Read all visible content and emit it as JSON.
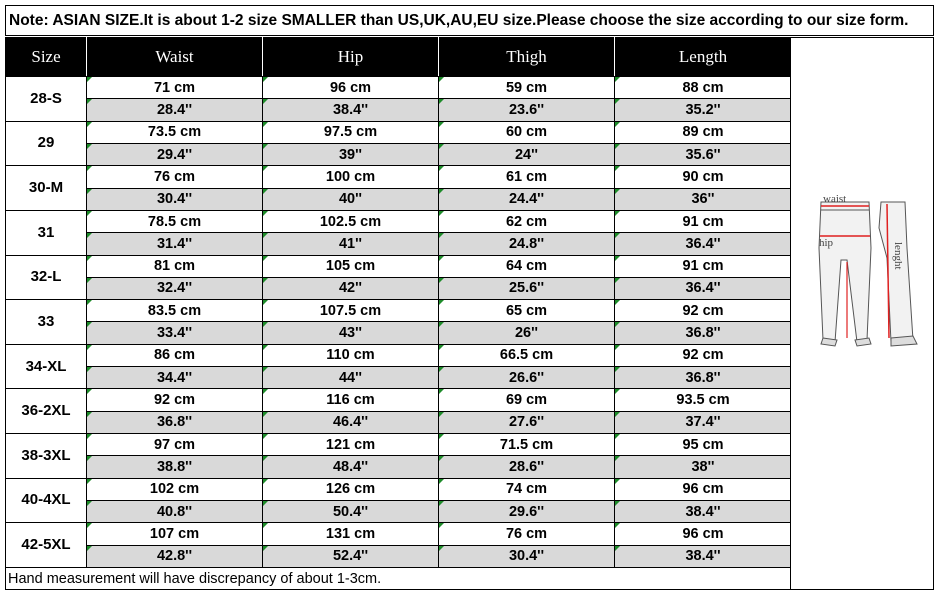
{
  "note": "Note: ASIAN SIZE.It is about 1-2 size SMALLER than US,UK,AU,EU size.Please choose the size according to our size form.",
  "headers": [
    "Size",
    "Waist",
    "Hip",
    "Thigh",
    "Length"
  ],
  "rows": [
    {
      "size": "28-S",
      "cm": [
        "71 cm",
        "96 cm",
        "59 cm",
        "88 cm"
      ],
      "inch": [
        "28.4''",
        "38.4''",
        "23.6''",
        "35.2''"
      ]
    },
    {
      "size": "29",
      "cm": [
        "73.5 cm",
        "97.5 cm",
        "60 cm",
        "89 cm"
      ],
      "inch": [
        "29.4''",
        "39''",
        "24''",
        "35.6''"
      ]
    },
    {
      "size": "30-M",
      "cm": [
        "76 cm",
        "100 cm",
        "61 cm",
        "90 cm"
      ],
      "inch": [
        "30.4''",
        "40''",
        "24.4''",
        "36''"
      ]
    },
    {
      "size": "31",
      "cm": [
        "78.5 cm",
        "102.5 cm",
        "62 cm",
        "91 cm"
      ],
      "inch": [
        "31.4''",
        "41''",
        "24.8''",
        "36.4''"
      ]
    },
    {
      "size": "32-L",
      "cm": [
        "81 cm",
        "105 cm",
        "64 cm",
        "91 cm"
      ],
      "inch": [
        "32.4''",
        "42''",
        "25.6''",
        "36.4''"
      ]
    },
    {
      "size": "33",
      "cm": [
        "83.5 cm",
        "107.5 cm",
        "65 cm",
        "92 cm"
      ],
      "inch": [
        "33.4''",
        "43''",
        "26''",
        "36.8''"
      ]
    },
    {
      "size": "34-XL",
      "cm": [
        "86 cm",
        "110 cm",
        "66.5 cm",
        "92 cm"
      ],
      "inch": [
        "34.4''",
        "44''",
        "26.6''",
        "36.8''"
      ]
    },
    {
      "size": "36-2XL",
      "cm": [
        "92 cm",
        "116 cm",
        "69 cm",
        "93.5 cm"
      ],
      "inch": [
        "36.8''",
        "46.4''",
        "27.6''",
        "37.4''"
      ]
    },
    {
      "size": "38-3XL",
      "cm": [
        "97 cm",
        "121 cm",
        "71.5 cm",
        "95 cm"
      ],
      "inch": [
        "38.8''",
        "48.4''",
        "28.6''",
        "38''"
      ]
    },
    {
      "size": "40-4XL",
      "cm": [
        "102 cm",
        "126 cm",
        "74 cm",
        "96 cm"
      ],
      "inch": [
        "40.8''",
        "50.4''",
        "29.6''",
        "38.4''"
      ]
    },
    {
      "size": "42-5XL",
      "cm": [
        "107 cm",
        "131 cm",
        "76 cm",
        "96 cm"
      ],
      "inch": [
        "42.8''",
        "52.4''",
        "30.4''",
        "38.4''"
      ]
    }
  ],
  "footer": "Hand measurement will have discrepancy of about 1-3cm.",
  "diagram": {
    "label_waist": "waist",
    "label_hip": "hip",
    "label_length": "lenght",
    "marker_color": "#e02020"
  },
  "colors": {
    "header_bg": "#000000",
    "header_text": "#ffffff",
    "inch_row_bg": "#d9d9d9",
    "corner_mark": "#1e8c2a"
  }
}
